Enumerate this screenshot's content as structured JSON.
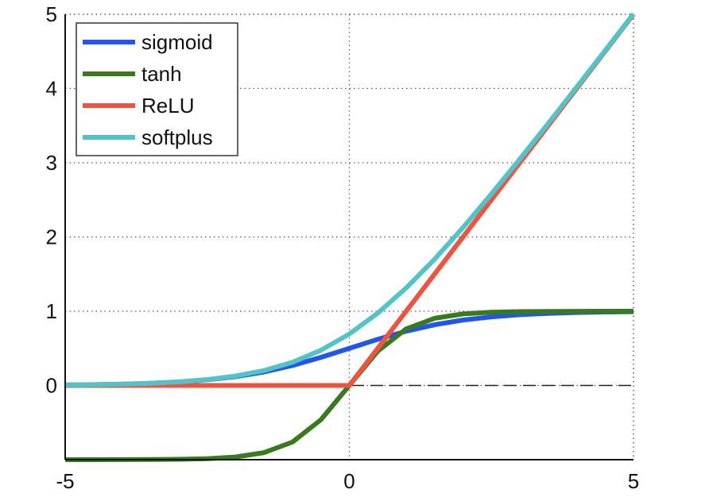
{
  "chart_data": {
    "type": "line",
    "title": "",
    "xlabel": "",
    "ylabel": "",
    "xlim": [
      -5,
      5
    ],
    "ylim": [
      -1,
      5
    ],
    "xticks": [
      -5,
      0,
      5
    ],
    "yticks": [
      0,
      1,
      2,
      3,
      4,
      5
    ],
    "xtick_labels": [
      "-5",
      "0",
      "5"
    ],
    "ytick_labels": [
      "0",
      "1",
      "2",
      "3",
      "4",
      "5"
    ],
    "grid": true,
    "grid_style": "dotted",
    "zero_line": {
      "y": 0,
      "style": "dashed",
      "color": "#222222"
    },
    "legend": {
      "position": "top-left",
      "boxed": true
    },
    "sample_x": [
      -5,
      -4.5,
      -4,
      -3.5,
      -3,
      -2.5,
      -2,
      -1.5,
      -1,
      -0.5,
      0,
      0.5,
      1,
      1.5,
      2,
      2.5,
      3,
      3.5,
      4,
      4.5,
      5
    ],
    "series": [
      {
        "name": "sigmoid",
        "color": "#2255e8",
        "y": [
          0.0067,
          0.011,
          0.018,
          0.029,
          0.047,
          0.076,
          0.119,
          0.182,
          0.269,
          0.378,
          0.5,
          0.622,
          0.731,
          0.818,
          0.881,
          0.924,
          0.953,
          0.971,
          0.982,
          0.989,
          0.993
        ]
      },
      {
        "name": "tanh",
        "color": "#3a7a1e",
        "y": [
          -1.0,
          -1.0,
          -0.999,
          -0.998,
          -0.995,
          -0.987,
          -0.964,
          -0.905,
          -0.762,
          -0.462,
          0.0,
          0.462,
          0.762,
          0.905,
          0.964,
          0.987,
          0.995,
          0.998,
          0.999,
          1.0,
          1.0
        ]
      },
      {
        "name": "ReLU",
        "color": "#ec5540",
        "y": [
          0,
          0,
          0,
          0,
          0,
          0,
          0,
          0,
          0,
          0,
          0,
          0.5,
          1,
          1.5,
          2,
          2.5,
          3,
          3.5,
          4,
          4.5,
          5
        ]
      },
      {
        "name": "softplus",
        "color": "#52c4c8",
        "y": [
          0.0067,
          0.011,
          0.018,
          0.03,
          0.049,
          0.079,
          0.127,
          0.201,
          0.313,
          0.474,
          0.693,
          0.974,
          1.313,
          1.701,
          2.127,
          2.579,
          3.049,
          3.53,
          4.018,
          4.511,
          5.007
        ]
      }
    ]
  }
}
